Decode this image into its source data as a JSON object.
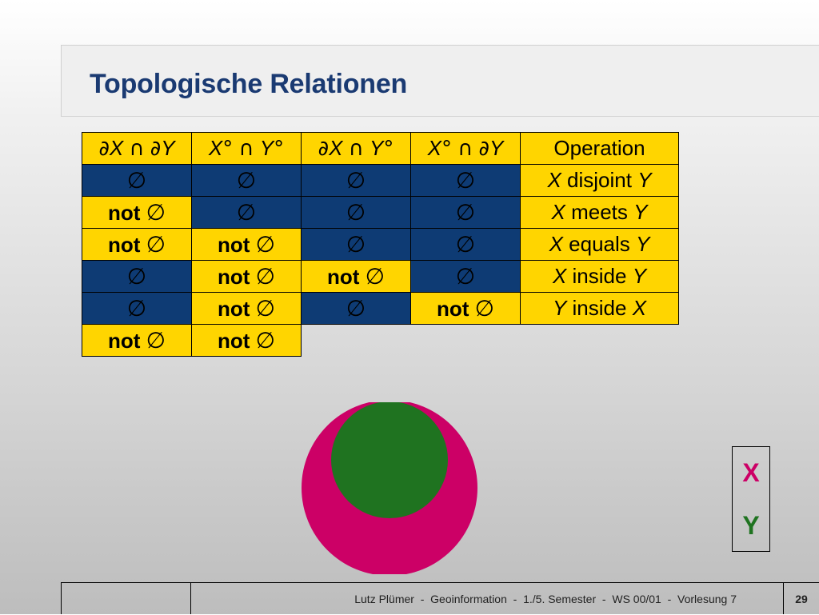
{
  "slide": {
    "title": "Topologische Relationen",
    "page_number": "29",
    "footer_text": "Lutz Plümer  -  Geoinformation  -  1./5. Semester  -  WS 00/01  -  Vorlesung 7"
  },
  "table": {
    "headers": [
      "∂X ∩ ∂Y",
      "X° ∩ Y°",
      "∂X ∩ Y°",
      "X° ∩ ∂Y",
      "Operation"
    ],
    "empty": "∅",
    "not_empty": "not ∅",
    "rows": [
      {
        "cells": [
          "∅",
          "∅",
          "∅",
          "∅"
        ],
        "op": "X disjoint Y"
      },
      {
        "cells": [
          "not ∅",
          "∅",
          "∅",
          "∅"
        ],
        "op": "X meets Y"
      },
      {
        "cells": [
          "not ∅",
          "not ∅",
          "∅",
          "∅"
        ],
        "op": "X equals Y"
      },
      {
        "cells": [
          "∅",
          "not ∅",
          "not ∅",
          "∅"
        ],
        "op": "X inside Y"
      },
      {
        "cells": [
          "∅",
          "not ∅",
          "∅",
          "not ∅"
        ],
        "op": "Y inside X"
      },
      {
        "cells": [
          "not ∅",
          "not ∅"
        ],
        "op": ""
      }
    ]
  },
  "legend": {
    "x_label": "X",
    "y_label": "Y",
    "x_color": "#cc0066",
    "y_color": "#1f7320"
  },
  "colors": {
    "title": "#1a3a72",
    "empty_cell": "#0e3b74",
    "not_empty_cell": "#ffd500",
    "operation_cell": "#ffd500"
  }
}
